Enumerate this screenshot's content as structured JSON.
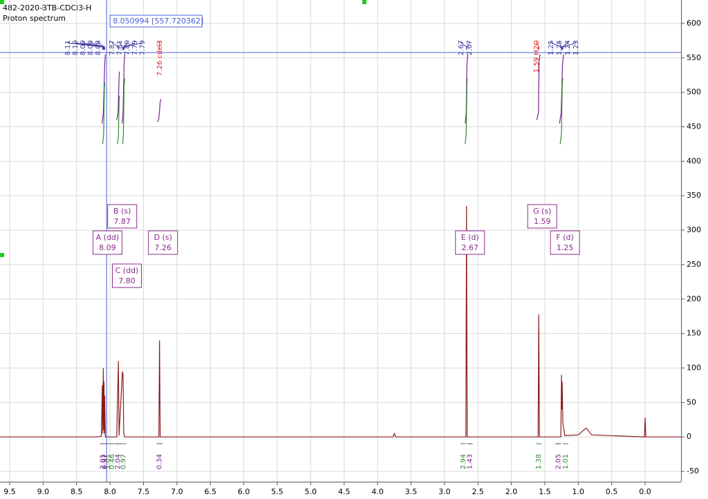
{
  "chart_data": {
    "type": "line",
    "title": "482-2020-BTB-CDCl3-H",
    "subtitle": "Proton spectrum",
    "xlim": [
      9.645,
      -0.537
    ],
    "ylim": [
      -65,
      634
    ],
    "xticks": [
      9.5,
      {
        "value": 9,
        "label": "9.0"
      },
      8.5,
      {
        "value": 8,
        "label": "8.0"
      },
      7.5,
      {
        "value": 7,
        "label": "7.0"
      },
      6.5,
      {
        "value": 6,
        "label": "6.0"
      },
      5.5,
      {
        "value": 5,
        "label": "5.0"
      },
      4.5,
      {
        "value": 4,
        "label": "4.0"
      },
      3.5,
      {
        "value": 3,
        "label": "3.0"
      },
      2.5,
      {
        "value": 2,
        "label": "2.0"
      },
      1.5,
      {
        "value": 1,
        "label": "1.0"
      },
      0.5,
      {
        "value": 0,
        "label": "0.0"
      }
    ],
    "yticks": [
      -50,
      0,
      50,
      100,
      150,
      200,
      250,
      300,
      350,
      400,
      450,
      500,
      550,
      600
    ],
    "grid": true,
    "series": [
      {
        "color": "#8b1a1a",
        "x": [
          9.645,
          8.2,
          8.13,
          8.115,
          8.11,
          8.1,
          8.095,
          8.09,
          8.085,
          8.08,
          8.07,
          7.9,
          7.875,
          7.865,
          7.815,
          7.805,
          7.795,
          7.78,
          7.27,
          7.26,
          7.25,
          3.77,
          3.75,
          3.73,
          2.68,
          2.67,
          2.66,
          1.6,
          1.59,
          1.58,
          1.26,
          1.25,
          1.245,
          1.24,
          1.23,
          1.2,
          1.0,
          0.88,
          0.8,
          0.01,
          0.0,
          -0.01,
          -0.537
        ],
        "values": [
          0,
          0,
          1,
          75,
          5,
          100,
          10,
          80,
          5,
          60,
          0,
          0,
          110,
          2,
          95,
          90,
          5,
          0,
          0,
          140,
          0,
          0,
          5,
          0,
          0,
          335,
          0,
          0,
          178,
          0,
          0,
          90,
          40,
          80,
          20,
          2,
          3,
          13,
          3,
          0,
          28,
          0,
          0
        ]
      }
    ],
    "integral_curves": [
      {
        "color": "#7a1f8f",
        "x": [
          8.12,
          8.1,
          8.08,
          8.07
        ],
        "values": [
          455,
          470,
          540,
          555
        ]
      },
      {
        "color": "#2e8b2e",
        "x": [
          8.11,
          8.095,
          8.085,
          8.08
        ],
        "values": [
          425,
          440,
          505,
          515
        ]
      },
      {
        "color": "#7a1f8f",
        "x": [
          7.9,
          7.88,
          7.865,
          7.86
        ],
        "values": [
          460,
          470,
          520,
          530
        ]
      },
      {
        "color": "#2e8b2e",
        "x": [
          7.89,
          7.875,
          7.865,
          7.86
        ],
        "values": [
          425,
          435,
          485,
          495
        ]
      },
      {
        "color": "#7a1f8f",
        "x": [
          7.82,
          7.805,
          7.79,
          7.78
        ],
        "values": [
          455,
          470,
          540,
          555
        ]
      },
      {
        "color": "#2e8b2e",
        "x": [
          7.81,
          7.8,
          7.79,
          7.78
        ],
        "values": [
          425,
          440,
          510,
          520
        ]
      },
      {
        "color": "#7a1f8f",
        "x": [
          7.29,
          7.27,
          7.25,
          7.24
        ],
        "values": [
          457,
          462,
          486,
          490
        ]
      },
      {
        "color": "#7a1f8f",
        "x": [
          2.69,
          2.675,
          2.665,
          2.65
        ],
        "values": [
          455,
          470,
          540,
          555
        ]
      },
      {
        "color": "#2e8b2e",
        "x": [
          2.69,
          2.675,
          2.665,
          2.66
        ],
        "values": [
          425,
          440,
          510,
          520
        ]
      },
      {
        "color": "#7a1f8f",
        "x": [
          1.62,
          1.595,
          1.585,
          1.57
        ],
        "values": [
          460,
          470,
          545,
          555
        ]
      },
      {
        "color": "#7a1f8f",
        "x": [
          1.28,
          1.255,
          1.235,
          1.22
        ],
        "values": [
          455,
          470,
          540,
          555
        ]
      },
      {
        "color": "#2e8b2e",
        "x": [
          1.27,
          1.25,
          1.24,
          1.23
        ],
        "values": [
          425,
          440,
          510,
          520
        ]
      }
    ],
    "peak_labels": [
      8.11,
      {
        "value": 8.1,
        "label": "8.10"
      },
      8.09,
      8.09,
      8.08,
      7.87,
      7.81,
      {
        "value": 7.8,
        "label": "7.80"
      },
      7.79,
      7.79,
      {
        "value": 7.26,
        "label": "7.26 cdcl3"
      },
      2.67,
      2.67,
      {
        "value": 1.59,
        "label": "1.59 H2O"
      },
      1.25,
      1.25,
      1.24,
      1.23
    ],
    "multiplets": [
      {
        "label": "A (dd)",
        "shift": 8.09
      },
      {
        "label": "B (s)",
        "shift": 7.87
      },
      {
        "label": "C (dd)",
        "shift": {
          "value": 7.8,
          "label": "7.80"
        }
      },
      {
        "label": "D (s)",
        "shift": 7.26
      },
      {
        "label": "E (d)",
        "shift": 2.67
      },
      {
        "label": "F (d)",
        "shift": 1.25
      },
      {
        "label": "G (s)",
        "shift": 1.59
      }
    ],
    "integrals": [
      {
        "value": 2.01,
        "ppm": 8.11
      },
      {
        "value": 1.01,
        "ppm": 8.04
      },
      {
        "value": 0.97,
        "ppm": 8.08
      },
      {
        "value": 0.46,
        "ppm": 7.97
      },
      {
        "value": 2.04,
        "ppm": 7.88
      },
      {
        "value": 0.97,
        "ppm": 7.8
      },
      {
        "value": 0.34,
        "ppm": 7.26
      },
      {
        "value": 2.94,
        "ppm": 2.72
      },
      {
        "value": 1.43,
        "ppm": 2.62
      },
      {
        "value": 1.38,
        "ppm": 1.59
      },
      {
        "value": 2.05,
        "ppm": 1.3
      },
      {
        "value": 1.01,
        "ppm": 1.19
      }
    ],
    "cursor": {
      "x": 8.050994,
      "y": 557.720362,
      "label": "8.050994 [557.720362]"
    }
  }
}
